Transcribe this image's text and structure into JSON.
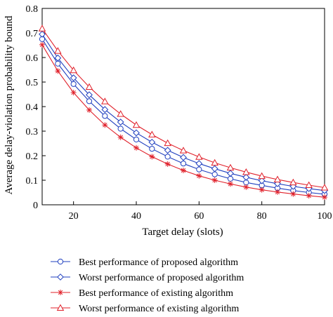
{
  "chart_data": {
    "type": "line",
    "xlabel": "Target delay (slots)",
    "ylabel": "Average delay-violation probability bound",
    "xlim": [
      10,
      100
    ],
    "ylim": [
      0,
      0.8
    ],
    "x_ticks": [
      20,
      40,
      60,
      80,
      100
    ],
    "y_ticks": [
      0,
      0.1,
      0.2,
      0.3,
      0.4,
      0.5,
      0.6,
      0.7,
      0.8
    ],
    "grid": false,
    "legend_position": "below",
    "x": [
      10,
      15,
      20,
      25,
      30,
      35,
      40,
      45,
      50,
      55,
      60,
      65,
      70,
      75,
      80,
      85,
      90,
      95,
      100
    ],
    "series": [
      {
        "name": "Best performance of proposed algorithm",
        "color": "#1f3fbf",
        "marker": "circle",
        "values": [
          0.675,
          0.575,
          0.492,
          0.422,
          0.362,
          0.31,
          0.266,
          0.228,
          0.196,
          0.168,
          0.144,
          0.124,
          0.106,
          0.091,
          0.079,
          0.068,
          0.058,
          0.05,
          0.043
        ]
      },
      {
        "name": "Worst performance of proposed algorithm",
        "color": "#1f3fbf",
        "marker": "diamond",
        "values": [
          0.695,
          0.598,
          0.517,
          0.448,
          0.388,
          0.337,
          0.293,
          0.255,
          0.222,
          0.193,
          0.168,
          0.147,
          0.128,
          0.112,
          0.098,
          0.086,
          0.075,
          0.066,
          0.058
        ]
      },
      {
        "name": "Best performance of existing algorithm",
        "color": "#e0202a",
        "marker": "asterisk",
        "values": [
          0.652,
          0.545,
          0.457,
          0.386,
          0.325,
          0.275,
          0.232,
          0.196,
          0.166,
          0.14,
          0.118,
          0.1,
          0.085,
          0.072,
          0.061,
          0.052,
          0.044,
          0.037,
          0.031
        ]
      },
      {
        "name": "Worst performance of existing algorithm",
        "color": "#e0202a",
        "marker": "triangle",
        "values": [
          0.718,
          0.627,
          0.548,
          0.48,
          0.421,
          0.37,
          0.325,
          0.286,
          0.251,
          0.221,
          0.195,
          0.171,
          0.151,
          0.133,
          0.117,
          0.103,
          0.091,
          0.08,
          0.07
        ]
      }
    ]
  }
}
